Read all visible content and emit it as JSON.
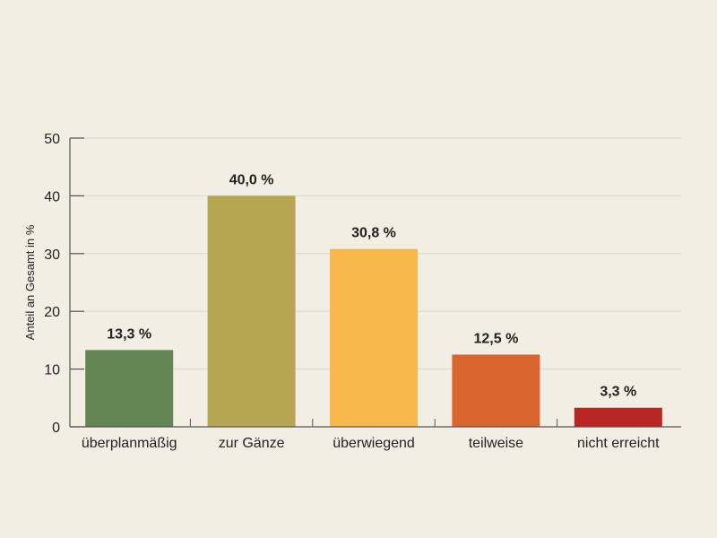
{
  "chart_data": {
    "type": "bar",
    "title": "",
    "xlabel": "",
    "ylabel": "Anteil an Gesamt in %",
    "ylim": [
      0,
      50
    ],
    "yticks": [
      0,
      10,
      20,
      30,
      40,
      50
    ],
    "grid": true,
    "legend": "none",
    "categories": [
      "überplanmäßig",
      "zur Gänze",
      "überwiegend",
      "teilweise",
      "nicht erreicht"
    ],
    "values": [
      13.3,
      40.0,
      30.8,
      12.5,
      3.3
    ],
    "value_labels": [
      "13,3 %",
      "40,0 %",
      "30,8 %",
      "12,5 %",
      "3,3 %"
    ],
    "colors": [
      "#628553",
      "#b6a551",
      "#f9b84c",
      "#d9642e",
      "#b92522"
    ]
  },
  "colors": {
    "background": "#f2eee3",
    "grid": "#e2ded4",
    "axis": "#555555",
    "text": "#222222"
  }
}
